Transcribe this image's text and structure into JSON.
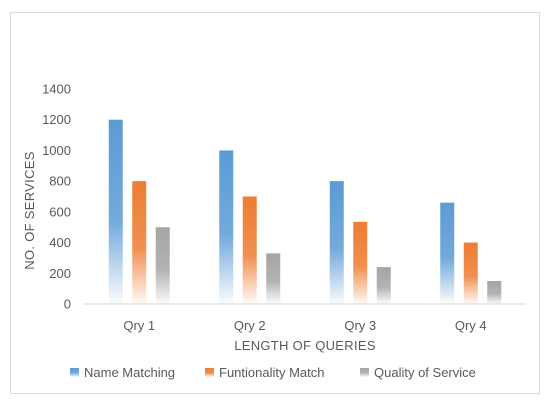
{
  "chart_data": {
    "type": "bar",
    "title": "",
    "xlabel": "LENGTH OF QUERIES",
    "ylabel": "NO. OF SERVICES",
    "categories": [
      "Qry 1",
      "Qry 2",
      "Qry 3",
      "Qry 4"
    ],
    "series": [
      {
        "name": "Name Matching",
        "values": [
          1200,
          1000,
          800,
          660
        ],
        "color": "#5b9bd5"
      },
      {
        "name": "Funtionality Match",
        "values": [
          800,
          700,
          535,
          400
        ],
        "color": "#ed7d31"
      },
      {
        "name": "Quality of Service",
        "values": [
          500,
          330,
          240,
          150
        ],
        "color": "#a5a5a5"
      }
    ],
    "ylim": [
      0,
      1400
    ],
    "yticks": [
      0,
      200,
      400,
      600,
      800,
      1000,
      1200,
      1400
    ],
    "grid": false,
    "legend": "bottom",
    "bar_style": "gradient fading to white at base"
  }
}
